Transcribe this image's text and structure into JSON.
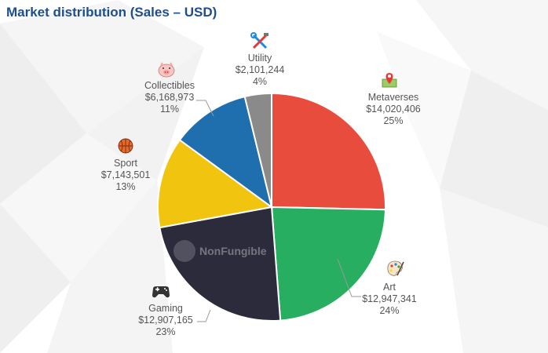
{
  "title": "Market distribution (Sales – USD)",
  "watermark": "NonFungible",
  "chart_data": {
    "type": "pie",
    "title": "Market distribution (Sales – USD)",
    "slices": [
      {
        "name": "Metaverses",
        "value": 14020406,
        "value_label": "$14,020,406",
        "percent": "25%",
        "color": "#e74c3c",
        "icon": "map-pin-icon"
      },
      {
        "name": "Art",
        "value": 12947341,
        "value_label": "$12,947,341",
        "percent": "24%",
        "color": "#27ae60",
        "icon": "palette-icon"
      },
      {
        "name": "Gaming",
        "value": 12907165,
        "value_label": "$12,907,165",
        "percent": "23%",
        "color": "#2b2b3c",
        "icon": "gamepad-icon"
      },
      {
        "name": "Sport",
        "value": 7143501,
        "value_label": "$7,143,501",
        "percent": "13%",
        "color": "#f1c40f",
        "icon": "basketball-icon"
      },
      {
        "name": "Collectibles",
        "value": 6168973,
        "value_label": "$6,168,973",
        "percent": "11%",
        "color": "#1f6fae",
        "icon": "pig-icon"
      },
      {
        "name": "Utility",
        "value": 2101244,
        "value_label": "$2,101,244",
        "percent": "4%",
        "color": "#8a8a8a",
        "icon": "tools-icon"
      }
    ]
  }
}
